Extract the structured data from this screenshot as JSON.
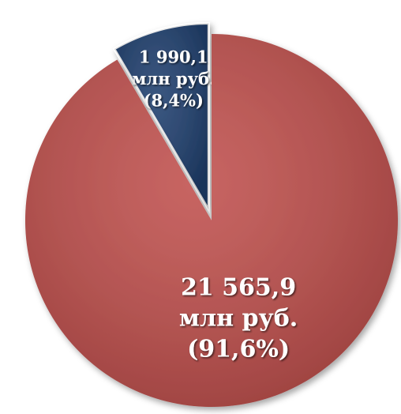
{
  "chart_data": {
    "type": "pie",
    "categories": [
      null,
      null
    ],
    "values": [
      1990.1,
      21565.9
    ],
    "value_labels": [
      [
        "1 990,1",
        "млн руб.",
        "(8,4%)"
      ],
      [
        "21 565,9",
        "млн руб.",
        "(91,6%)"
      ]
    ],
    "colors": [
      "#1f3f6e",
      "#c0504d"
    ]
  }
}
